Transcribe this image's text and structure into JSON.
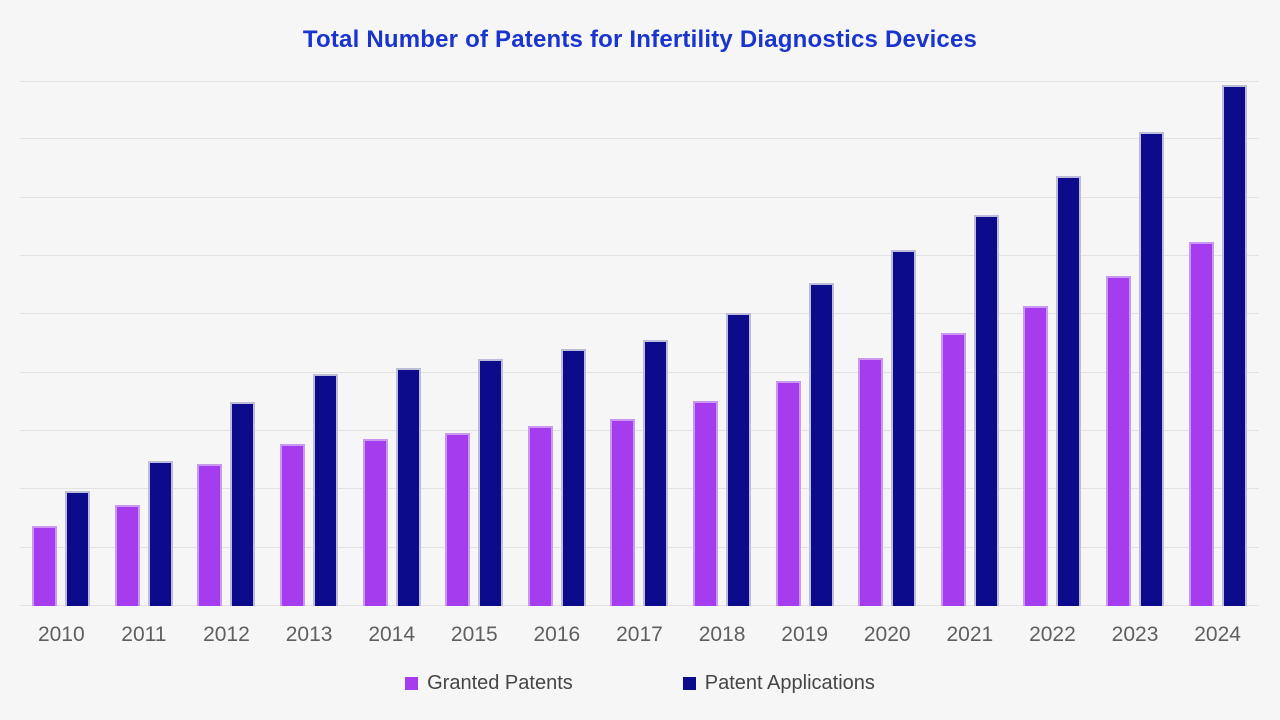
{
  "chart_data": {
    "type": "bar",
    "title": "Total Number of Patents for Infertility Diagnostics Devices",
    "categories": [
      "2010",
      "2011",
      "2012",
      "2013",
      "2014",
      "2015",
      "2016",
      "2017",
      "2018",
      "2019",
      "2020",
      "2021",
      "2022",
      "2023",
      "2024"
    ],
    "series": [
      {
        "name": "Granted Patents",
        "color": "#a53cee",
        "border_color": "#c998f0",
        "values": [
          69,
          87,
          122,
          139,
          143,
          148,
          154,
          160,
          176,
          193,
          213,
          234,
          257,
          283,
          312
        ]
      },
      {
        "name": "Patent Applications",
        "color": "#0b0b8b",
        "border_color": "#bdbdda",
        "values": [
          99,
          124,
          175,
          199,
          204,
          212,
          220,
          228,
          251,
          277,
          305,
          335,
          369,
          406,
          447
        ]
      }
    ],
    "xlabel": "",
    "ylabel": "",
    "ylim": [
      0,
      450
    ],
    "gridline_interval": 50,
    "grid": true,
    "y_axis_labels_visible": false,
    "legend_position": "bottom"
  },
  "colors": {
    "background": "#f6f6f6",
    "gridline": "#e2e2e2",
    "title": "#1a35cd",
    "axis_label": "#5f5f5f",
    "legend_text": "#454545"
  }
}
